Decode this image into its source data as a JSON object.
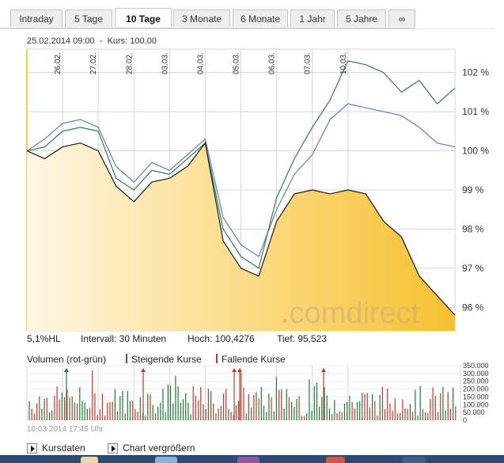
{
  "tabs": [
    {
      "label": "Intraday",
      "active": false
    },
    {
      "label": "5 Tage",
      "active": false
    },
    {
      "label": "10 Tage",
      "active": true
    },
    {
      "label": "3 Monate",
      "active": false
    },
    {
      "label": "6 Monate",
      "active": false
    },
    {
      "label": "1 Jahr",
      "active": false
    },
    {
      "label": "5 Jahre",
      "active": false
    },
    {
      "label": "∞",
      "active": false
    }
  ],
  "info": {
    "datetime": "25.02.2014 09:00",
    "separator": "-",
    "kurs_label": "Kurs:",
    "kurs_value": "100,00"
  },
  "stats": {
    "range": "5,1%HL",
    "intervall": "Intervall: 30 Minuten",
    "hoch": "Hoch: 100,4276",
    "tief": "Tief:  95,523"
  },
  "volume_header": {
    "title": "Volumen (rot-grün)",
    "rising_label": "Steigende Kurse",
    "falling_label": "Fallende Kurse",
    "rising_color": "#1f7a3a",
    "falling_color": "#c0392b"
  },
  "timestamp": "10.03.2014 17:45 Uhr",
  "footer": {
    "kursdaten": "Kursdaten",
    "chart_vergroessern": "Chart vergrößern"
  },
  "watermark": ".comdirect",
  "colors": {
    "main_line": "#1a1a1a",
    "green_line": "#2e7d4f",
    "blue_line": "#5b7fb8",
    "fill_light": "#fff6e0",
    "fill_dark": "#f7c430",
    "grid": "#d6d6d6",
    "start_marker": "#f2d23a"
  },
  "chart_data": [
    {
      "type": "line",
      "x_tick_labels": [
        "26.02.",
        "27.02.",
        "28.02.",
        "03.03.",
        "04.03.",
        "05.03.",
        "06.03.",
        "07.03.",
        "10.03."
      ],
      "y_tick_labels": [
        "102 %",
        "101 %",
        "100 %",
        "99 %",
        "98 %",
        "97 %",
        "96 %"
      ],
      "ylim": [
        95.4,
        102.6
      ],
      "x": [
        0,
        0.5,
        1,
        1.5,
        2,
        2.5,
        3,
        3.5,
        4,
        4.5,
        5,
        5.5,
        6,
        6.5,
        7,
        7.5,
        8,
        8.5,
        9,
        9.5,
        10,
        10.5,
        11,
        11.5,
        12
      ],
      "series": [
        {
          "values": [
            100.0,
            99.8,
            100.1,
            100.2,
            100.0,
            99.1,
            98.7,
            99.2,
            99.3,
            99.6,
            100.2,
            97.7,
            97.0,
            96.8,
            98.2,
            98.9,
            99.0,
            98.9,
            99.0,
            98.9,
            98.2,
            97.8,
            96.8,
            96.3,
            95.8
          ]
        },
        {
          "values": [
            100.0,
            100.1,
            100.5,
            100.6,
            100.5,
            99.3,
            99.0,
            99.5,
            99.4,
            99.8,
            100.2,
            98.0,
            97.3,
            97.0,
            98.8,
            99.8,
            100.6,
            101.3,
            102.3,
            102.2,
            102.0,
            101.5,
            101.8,
            101.2,
            101.6
          ]
        },
        {
          "values": [
            100.0,
            100.3,
            100.7,
            100.8,
            100.6,
            99.6,
            99.2,
            99.7,
            99.5,
            99.9,
            100.3,
            98.3,
            97.6,
            97.3,
            98.5,
            99.4,
            99.9,
            100.8,
            101.2,
            101.1,
            101.0,
            100.9,
            100.6,
            100.2,
            100.1
          ]
        }
      ]
    },
    {
      "type": "bar",
      "y_tick_labels": [
        "350.000",
        "300.000",
        "250.000",
        "200.000",
        "150.000",
        "100.000",
        "50.000",
        "0"
      ],
      "ylim": [
        0,
        350000
      ]
    }
  ]
}
